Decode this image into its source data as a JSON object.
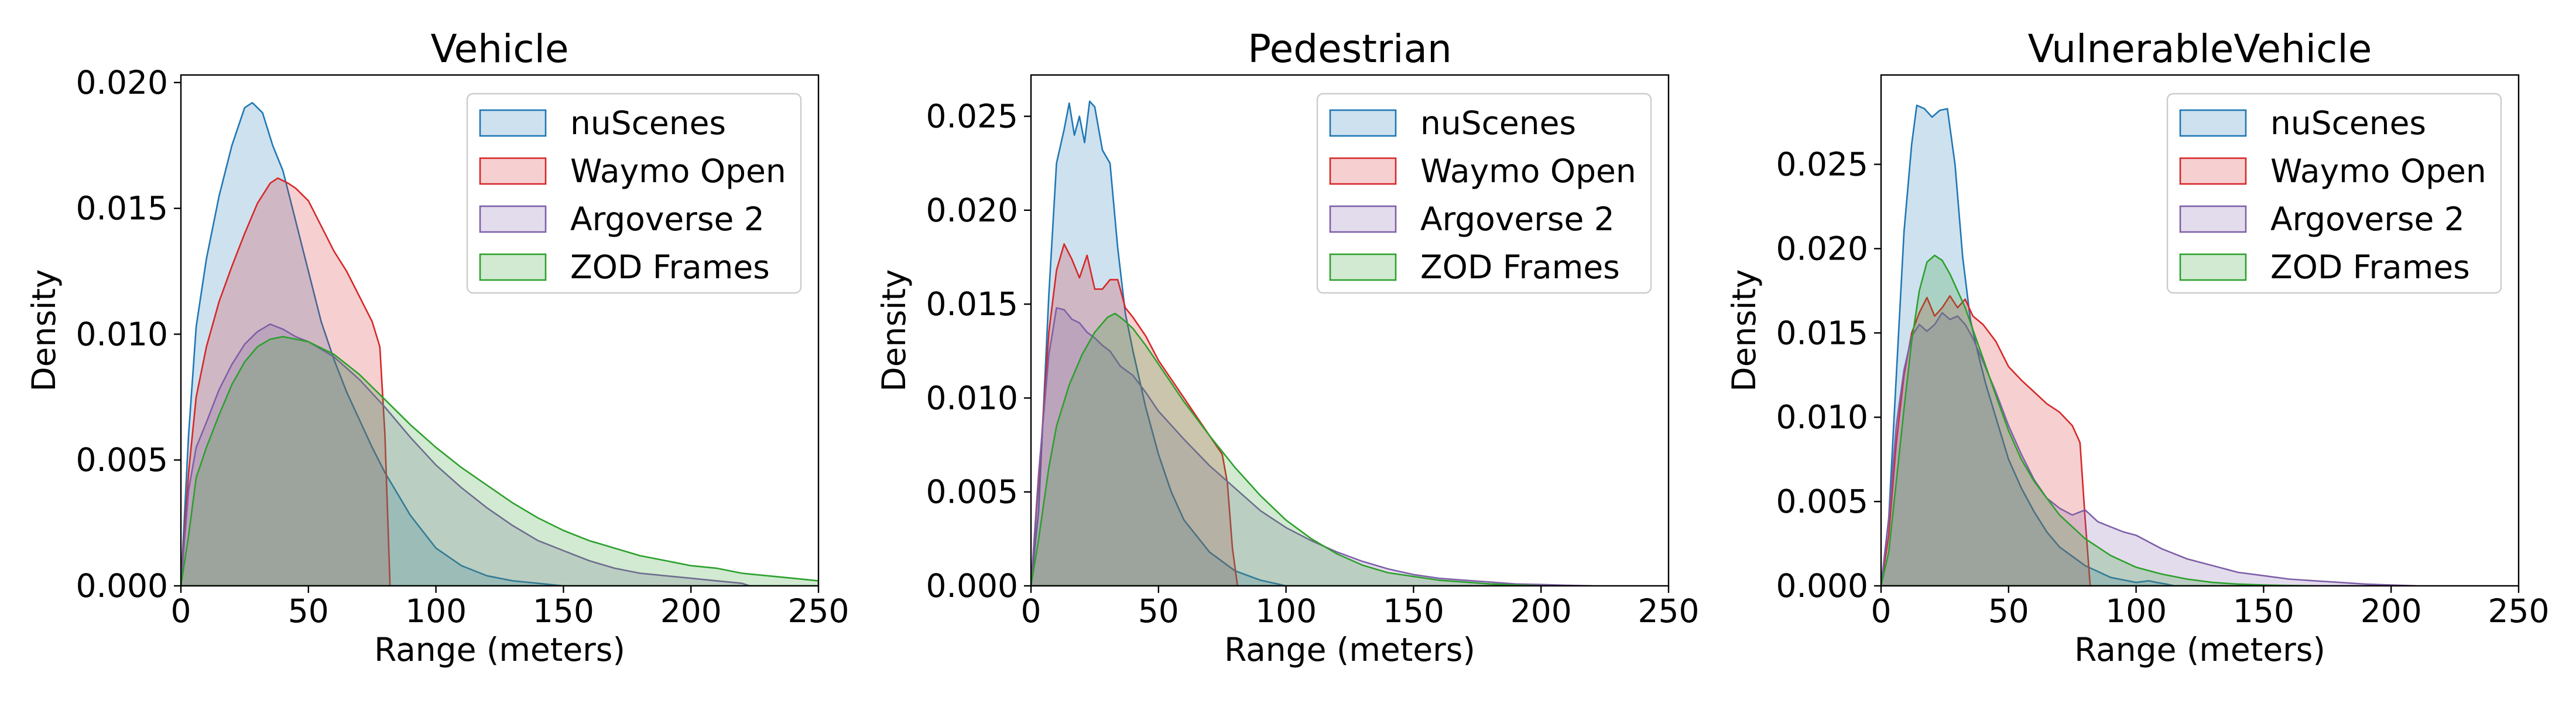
{
  "chart_data": [
    {
      "type": "area",
      "title": "Vehicle",
      "xlabel": "Range (meters)",
      "ylabel": "Density",
      "xlim": [
        0,
        250
      ],
      "ylim": [
        0,
        0.0203
      ],
      "xticks": [
        0,
        50,
        100,
        150,
        200,
        250
      ],
      "yticks": [
        0.0,
        0.005,
        0.01,
        0.015,
        0.02
      ],
      "ytick_labels": [
        "0.000",
        "0.005",
        "0.010",
        "0.015",
        "0.020"
      ],
      "legend": "top-right",
      "grid": false,
      "series": [
        {
          "name": "nuScenes",
          "color": "#1f77b4",
          "x": [
            0,
            3,
            6,
            10,
            15,
            20,
            25,
            28,
            32,
            36,
            40,
            45,
            50,
            55,
            60,
            65,
            70,
            75,
            80,
            90,
            100,
            110,
            120,
            130,
            140,
            150
          ],
          "y": [
            0,
            0.006,
            0.0103,
            0.013,
            0.0155,
            0.0175,
            0.019,
            0.0192,
            0.0188,
            0.0175,
            0.0165,
            0.0145,
            0.0125,
            0.0105,
            0.009,
            0.0077,
            0.0066,
            0.0055,
            0.0045,
            0.0028,
            0.0015,
            0.0008,
            0.0004,
            0.0002,
            0.0001,
            0
          ]
        },
        {
          "name": "Waymo Open",
          "color": "#d62728",
          "x": [
            0,
            3,
            6,
            10,
            15,
            20,
            25,
            30,
            35,
            38,
            42,
            45,
            50,
            55,
            60,
            65,
            70,
            75,
            78,
            80,
            82
          ],
          "y": [
            0,
            0.0045,
            0.0075,
            0.0095,
            0.0113,
            0.0127,
            0.014,
            0.0152,
            0.016,
            0.0162,
            0.016,
            0.0158,
            0.0153,
            0.0143,
            0.0133,
            0.0125,
            0.0115,
            0.0105,
            0.0095,
            0.006,
            0
          ]
        },
        {
          "name": "Argoverse 2",
          "color": "#7f5fa8",
          "x": [
            0,
            3,
            6,
            10,
            15,
            20,
            25,
            30,
            35,
            40,
            45,
            50,
            60,
            70,
            80,
            90,
            100,
            110,
            120,
            130,
            140,
            150,
            160,
            170,
            180,
            190,
            200,
            210,
            220,
            223
          ],
          "y": [
            0,
            0.0038,
            0.0055,
            0.0065,
            0.0078,
            0.0088,
            0.0096,
            0.0101,
            0.0104,
            0.0102,
            0.0099,
            0.0097,
            0.0091,
            0.0082,
            0.0071,
            0.0059,
            0.0048,
            0.0039,
            0.0031,
            0.0024,
            0.0018,
            0.0014,
            0.001,
            0.0007,
            0.0005,
            0.0004,
            0.0003,
            0.0002,
            0.0001,
            0
          ]
        },
        {
          "name": "ZOD Frames",
          "color": "#2ca02c",
          "x": [
            0,
            3,
            6,
            10,
            15,
            20,
            25,
            30,
            35,
            40,
            45,
            50,
            60,
            70,
            80,
            90,
            100,
            110,
            120,
            130,
            140,
            150,
            160,
            170,
            180,
            190,
            200,
            210,
            220,
            230,
            240,
            250
          ],
          "y": [
            0,
            0.002,
            0.0043,
            0.0055,
            0.0068,
            0.008,
            0.0089,
            0.0095,
            0.0098,
            0.0099,
            0.0098,
            0.0097,
            0.0092,
            0.0084,
            0.0074,
            0.0064,
            0.0055,
            0.0047,
            0.004,
            0.0033,
            0.0027,
            0.0022,
            0.0018,
            0.0015,
            0.0012,
            0.001,
            0.0008,
            0.0007,
            0.0005,
            0.0004,
            0.0003,
            0.0002
          ]
        }
      ]
    },
    {
      "type": "area",
      "title": "Pedestrian",
      "xlabel": "Range (meters)",
      "ylabel": "Density",
      "xlim": [
        0,
        250
      ],
      "ylim": [
        0,
        0.0272
      ],
      "xticks": [
        0,
        50,
        100,
        150,
        200,
        250
      ],
      "yticks": [
        0.0,
        0.005,
        0.01,
        0.015,
        0.02,
        0.025
      ],
      "ytick_labels": [
        "0.000",
        "0.005",
        "0.010",
        "0.015",
        "0.020",
        "0.025"
      ],
      "legend": "top-right",
      "grid": false,
      "series": [
        {
          "name": "nuScenes",
          "color": "#1f77b4",
          "x": [
            0,
            3,
            7,
            10,
            13,
            15,
            17,
            19,
            21,
            23,
            25,
            28,
            31,
            34,
            37,
            40,
            45,
            50,
            55,
            60,
            70,
            80,
            90,
            100
          ],
          "y": [
            0,
            0.004,
            0.0155,
            0.0225,
            0.0243,
            0.0257,
            0.024,
            0.025,
            0.0236,
            0.0258,
            0.0255,
            0.0232,
            0.0225,
            0.018,
            0.0145,
            0.0125,
            0.0095,
            0.007,
            0.005,
            0.0035,
            0.0018,
            0.0008,
            0.0003,
            0
          ]
        },
        {
          "name": "Waymo Open",
          "color": "#d62728",
          "x": [
            0,
            3,
            7,
            10,
            13,
            16,
            19,
            22,
            25,
            28,
            31,
            34,
            37,
            40,
            45,
            50,
            55,
            60,
            65,
            70,
            75,
            77,
            79,
            81
          ],
          "y": [
            0,
            0.0055,
            0.0135,
            0.0168,
            0.0182,
            0.0174,
            0.0164,
            0.0176,
            0.0158,
            0.0158,
            0.0163,
            0.0163,
            0.0148,
            0.0143,
            0.0133,
            0.012,
            0.011,
            0.01,
            0.009,
            0.008,
            0.007,
            0.0055,
            0.002,
            0
          ]
        },
        {
          "name": "Argoverse 2",
          "color": "#7f5fa8",
          "x": [
            0,
            3,
            7,
            10,
            13,
            16,
            19,
            22,
            25,
            28,
            31,
            35,
            40,
            45,
            50,
            60,
            70,
            80,
            90,
            100,
            110,
            120,
            130,
            140,
            150,
            160,
            170,
            180,
            190,
            200,
            210,
            220
          ],
          "y": [
            0,
            0.006,
            0.0123,
            0.0148,
            0.0147,
            0.0142,
            0.014,
            0.0135,
            0.0132,
            0.0128,
            0.0125,
            0.0117,
            0.0112,
            0.0103,
            0.0093,
            0.0078,
            0.0064,
            0.0052,
            0.004,
            0.0031,
            0.0024,
            0.0018,
            0.0013,
            0.0009,
            0.0006,
            0.0004,
            0.0003,
            0.0002,
            0.0001,
            7e-05,
            3e-05,
            0
          ]
        },
        {
          "name": "ZOD Frames",
          "color": "#2ca02c",
          "x": [
            0,
            3,
            7,
            10,
            15,
            20,
            25,
            30,
            33,
            36,
            40,
            45,
            50,
            60,
            70,
            80,
            90,
            100,
            110,
            120,
            130,
            140,
            150,
            160,
            170,
            180,
            190,
            200
          ],
          "y": [
            0,
            0.0025,
            0.0063,
            0.0085,
            0.0107,
            0.0123,
            0.0135,
            0.0143,
            0.0145,
            0.0142,
            0.0137,
            0.0128,
            0.0118,
            0.0098,
            0.008,
            0.0063,
            0.0048,
            0.0035,
            0.0025,
            0.0017,
            0.0011,
            0.0007,
            0.0005,
            0.0003,
            0.0002,
            0.0001,
            5e-05,
            0
          ]
        }
      ]
    },
    {
      "type": "area",
      "title": "VulnerableVehicle",
      "xlabel": "Range (meters)",
      "ylabel": "Density",
      "xlim": [
        0,
        250
      ],
      "ylim": [
        0,
        0.0303
      ],
      "xticks": [
        0,
        50,
        100,
        150,
        200,
        250
      ],
      "yticks": [
        0.0,
        0.005,
        0.01,
        0.015,
        0.02,
        0.025
      ],
      "ytick_labels": [
        "0.000",
        "0.005",
        "0.010",
        "0.015",
        "0.020",
        "0.025"
      ],
      "legend": "top-right",
      "grid": false,
      "series": [
        {
          "name": "nuScenes",
          "color": "#1f77b4",
          "x": [
            0,
            3,
            6,
            9,
            12,
            14,
            17,
            20,
            23,
            26,
            29,
            32,
            35,
            38,
            41,
            45,
            50,
            55,
            60,
            65,
            70,
            80,
            90,
            100,
            105,
            108,
            112,
            115
          ],
          "y": [
            0,
            0.004,
            0.0125,
            0.021,
            0.0262,
            0.0285,
            0.0283,
            0.0278,
            0.0282,
            0.0283,
            0.025,
            0.0195,
            0.0158,
            0.0138,
            0.012,
            0.01,
            0.0075,
            0.0058,
            0.0044,
            0.0032,
            0.0023,
            0.0012,
            0.0005,
            0.0002,
            0.0003,
            0.0002,
            0.0001,
            0
          ]
        },
        {
          "name": "Waymo Open",
          "color": "#d62728",
          "x": [
            0,
            3,
            6,
            9,
            12,
            15,
            18,
            21,
            24,
            27,
            30,
            33,
            36,
            40,
            45,
            50,
            55,
            60,
            65,
            70,
            75,
            78,
            80,
            82
          ],
          "y": [
            0,
            0.003,
            0.0085,
            0.0125,
            0.015,
            0.0162,
            0.0171,
            0.016,
            0.0165,
            0.0172,
            0.0165,
            0.017,
            0.016,
            0.0155,
            0.0145,
            0.013,
            0.0122,
            0.0115,
            0.0108,
            0.0103,
            0.0095,
            0.0085,
            0.004,
            0
          ]
        },
        {
          "name": "Argoverse 2",
          "color": "#7f5fa8",
          "x": [
            0,
            3,
            6,
            9,
            12,
            15,
            18,
            21,
            24,
            27,
            30,
            33,
            36,
            40,
            45,
            50,
            55,
            60,
            65,
            70,
            75,
            80,
            85,
            90,
            95,
            100,
            110,
            120,
            130,
            140,
            150,
            160,
            170,
            180,
            190,
            200,
            210
          ],
          "y": [
            0,
            0.004,
            0.0095,
            0.0128,
            0.0148,
            0.0155,
            0.0151,
            0.0155,
            0.0162,
            0.0158,
            0.016,
            0.0155,
            0.0147,
            0.0133,
            0.0115,
            0.0095,
            0.0078,
            0.0063,
            0.0052,
            0.0046,
            0.0042,
            0.0045,
            0.0038,
            0.0035,
            0.0032,
            0.003,
            0.0022,
            0.0016,
            0.0012,
            0.0008,
            0.0006,
            0.0004,
            0.0003,
            0.0002,
            0.0001,
            5e-05,
            0
          ]
        },
        {
          "name": "ZOD Frames",
          "color": "#2ca02c",
          "x": [
            0,
            3,
            6,
            9,
            12,
            15,
            18,
            21,
            24,
            27,
            30,
            33,
            36,
            40,
            45,
            50,
            55,
            60,
            70,
            80,
            90,
            100,
            110,
            120,
            130,
            140,
            150,
            160,
            170
          ],
          "y": [
            0,
            0.002,
            0.0062,
            0.0105,
            0.0145,
            0.0175,
            0.0192,
            0.0196,
            0.0193,
            0.0185,
            0.0175,
            0.0165,
            0.0152,
            0.0135,
            0.0113,
            0.0092,
            0.0075,
            0.0062,
            0.0042,
            0.0028,
            0.0018,
            0.0011,
            0.0007,
            0.0004,
            0.0002,
            0.0001,
            5e-05,
            2e-05,
            0
          ]
        }
      ]
    }
  ]
}
